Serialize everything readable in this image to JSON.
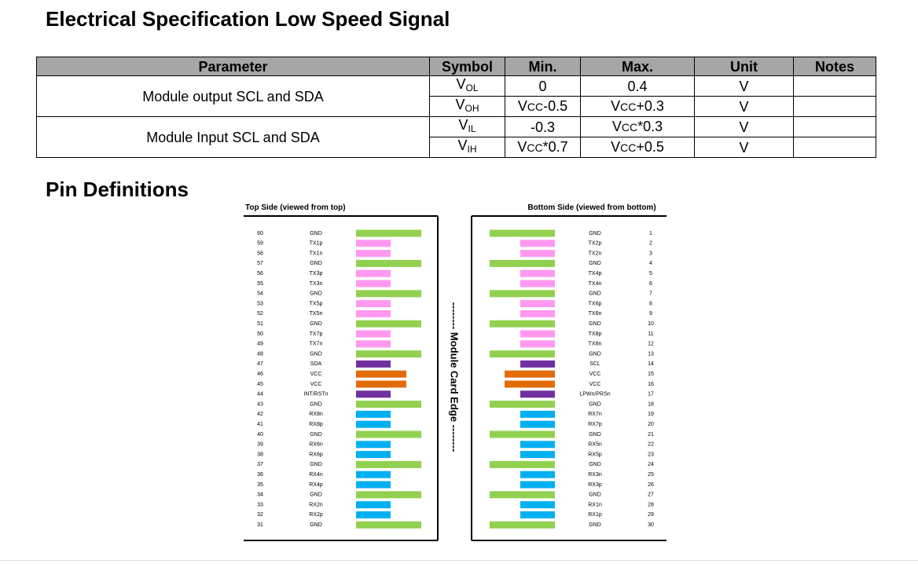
{
  "header": {
    "title": "Electrical Specification Low Speed Signal"
  },
  "table": {
    "columns": [
      "Parameter",
      "Symbol",
      "Min.",
      "Max.",
      "Unit",
      "Notes"
    ],
    "groups": [
      {
        "parameter": "Module output SCL and SDA",
        "rows": [
          [
            [
              {
                "t": "V"
              },
              {
                "sub": "OL"
              }
            ],
            "0",
            "0.4",
            "V"
          ],
          [
            [
              {
                "t": "V"
              },
              {
                "sub": "OH"
              }
            ],
            [
              {
                "t": "V"
              },
              {
                "sc": "CC"
              },
              {
                "t": "-0.5"
              }
            ],
            [
              {
                "t": "V"
              },
              {
                "sc": "CC"
              },
              {
                "t": "+0.3"
              }
            ],
            "V"
          ]
        ]
      },
      {
        "parameter": "Module Input SCL and SDA",
        "rows": [
          [
            [
              {
                "t": "V"
              },
              {
                "sub": "IL"
              }
            ],
            "-0.3",
            [
              {
                "t": "V"
              },
              {
                "sc": "CC"
              },
              {
                "t": "*0.3"
              }
            ],
            "V"
          ],
          [
            [
              {
                "t": "V"
              },
              {
                "sub": "IH"
              }
            ],
            [
              {
                "t": "V"
              },
              {
                "sc": "CC"
              },
              {
                "t": "*0.7"
              }
            ],
            [
              {
                "t": "V"
              },
              {
                "sc": "CC"
              },
              {
                "t": "+0.5"
              }
            ],
            "V"
          ]
        ]
      }
    ]
  },
  "pins": {
    "title": "Pin Definitions",
    "edge_label": "-------- Module Card Edge --------",
    "top": {
      "title": "Top Side (viewed from top)",
      "pins": [
        {
          "num": 60,
          "name": "GND",
          "color": "#92d050"
        },
        {
          "num": 59,
          "name": "TX1p",
          "color": "#ff99f0"
        },
        {
          "num": 58,
          "name": "TX1n",
          "color": "#ff99f0"
        },
        {
          "num": 57,
          "name": "GND",
          "color": "#92d050"
        },
        {
          "num": 56,
          "name": "TX3p",
          "color": "#ff99f0"
        },
        {
          "num": 55,
          "name": "TX3n",
          "color": "#ff99f0"
        },
        {
          "num": 54,
          "name": "GND",
          "color": "#92d050"
        },
        {
          "num": 53,
          "name": "TX5p",
          "color": "#ff99f0"
        },
        {
          "num": 52,
          "name": "TX5n",
          "color": "#ff99f0"
        },
        {
          "num": 51,
          "name": "GND",
          "color": "#92d050"
        },
        {
          "num": 50,
          "name": "TX7p",
          "color": "#ff99f0"
        },
        {
          "num": 49,
          "name": "TX7n",
          "color": "#ff99f0"
        },
        {
          "num": 48,
          "name": "GND",
          "color": "#92d050"
        },
        {
          "num": 47,
          "name": "SDA",
          "color": "#7030a0"
        },
        {
          "num": 46,
          "name": "VCC",
          "color": "#e36c0a"
        },
        {
          "num": 45,
          "name": "VCC",
          "color": "#e36c0a"
        },
        {
          "num": 44,
          "name": "INT/RSTn",
          "color": "#7030a0"
        },
        {
          "num": 43,
          "name": "GND",
          "color": "#92d050"
        },
        {
          "num": 42,
          "name": "RX8n",
          "color": "#00b0f0"
        },
        {
          "num": 41,
          "name": "RX8p",
          "color": "#00b0f0"
        },
        {
          "num": 40,
          "name": "GND",
          "color": "#92d050"
        },
        {
          "num": 39,
          "name": "RX6n",
          "color": "#00b0f0"
        },
        {
          "num": 38,
          "name": "RX6p",
          "color": "#00b0f0"
        },
        {
          "num": 37,
          "name": "GND",
          "color": "#92d050"
        },
        {
          "num": 36,
          "name": "RX4n",
          "color": "#00b0f0"
        },
        {
          "num": 35,
          "name": "RX4p",
          "color": "#00b0f0"
        },
        {
          "num": 34,
          "name": "GND",
          "color": "#92d050"
        },
        {
          "num": 33,
          "name": "RX2n",
          "color": "#00b0f0"
        },
        {
          "num": 32,
          "name": "RX2p",
          "color": "#00b0f0"
        },
        {
          "num": 31,
          "name": "GND",
          "color": "#92d050"
        }
      ]
    },
    "bottom": {
      "title": "Bottom Side (viewed from bottom)",
      "pins": [
        {
          "num": 1,
          "name": "GND",
          "color": "#92d050"
        },
        {
          "num": 2,
          "name": "TX2p",
          "color": "#ff99f0"
        },
        {
          "num": 3,
          "name": "TX2n",
          "color": "#ff99f0"
        },
        {
          "num": 4,
          "name": "GND",
          "color": "#92d050"
        },
        {
          "num": 5,
          "name": "TX4p",
          "color": "#ff99f0"
        },
        {
          "num": 6,
          "name": "TX4n",
          "color": "#ff99f0"
        },
        {
          "num": 7,
          "name": "GND",
          "color": "#92d050"
        },
        {
          "num": 8,
          "name": "TX6p",
          "color": "#ff99f0"
        },
        {
          "num": 9,
          "name": "TX6n",
          "color": "#ff99f0"
        },
        {
          "num": 10,
          "name": "GND",
          "color": "#92d050"
        },
        {
          "num": 11,
          "name": "TX8p",
          "color": "#ff99f0"
        },
        {
          "num": 12,
          "name": "TX8n",
          "color": "#ff99f0"
        },
        {
          "num": 13,
          "name": "GND",
          "color": "#92d050"
        },
        {
          "num": 14,
          "name": "SCL",
          "color": "#7030a0"
        },
        {
          "num": 15,
          "name": "VCC",
          "color": "#e36c0a"
        },
        {
          "num": 16,
          "name": "VCC",
          "color": "#e36c0a"
        },
        {
          "num": 17,
          "name": "LPWn/PRSn",
          "color": "#7030a0"
        },
        {
          "num": 18,
          "name": "GND",
          "color": "#92d050"
        },
        {
          "num": 19,
          "name": "RX7n",
          "color": "#00b0f0"
        },
        {
          "num": 20,
          "name": "RX7p",
          "color": "#00b0f0"
        },
        {
          "num": 21,
          "name": "GND",
          "color": "#92d050"
        },
        {
          "num": 22,
          "name": "RX5n",
          "color": "#00b0f0"
        },
        {
          "num": 23,
          "name": "RX5p",
          "color": "#00b0f0"
        },
        {
          "num": 24,
          "name": "GND",
          "color": "#92d050"
        },
        {
          "num": 25,
          "name": "RX3n",
          "color": "#00b0f0"
        },
        {
          "num": 26,
          "name": "RX3p",
          "color": "#00b0f0"
        },
        {
          "num": 27,
          "name": "GND",
          "color": "#92d050"
        },
        {
          "num": 28,
          "name": "RX1n",
          "color": "#00b0f0"
        },
        {
          "num": 29,
          "name": "RX1p",
          "color": "#00b0f0"
        },
        {
          "num": 30,
          "name": "GND",
          "color": "#92d050"
        }
      ]
    }
  }
}
